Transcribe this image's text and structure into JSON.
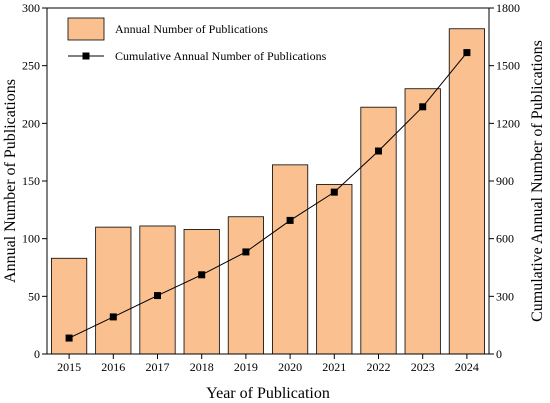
{
  "chart_data": {
    "type": "bar+line",
    "categories": [
      "2015",
      "2016",
      "2017",
      "2018",
      "2019",
      "2020",
      "2021",
      "2022",
      "2023",
      "2024"
    ],
    "series": [
      {
        "name": "Annual Number of Publications",
        "type": "bar",
        "axis": "left",
        "values": [
          83,
          110,
          111,
          108,
          119,
          164,
          147,
          214,
          230,
          282
        ]
      },
      {
        "name": "Cumulative Annual Number of Publications",
        "type": "line",
        "axis": "right",
        "values": [
          83,
          193,
          304,
          412,
          531,
          695,
          842,
          1056,
          1286,
          1568
        ]
      }
    ],
    "xlabel": "Year of Publication",
    "ylabel_left": "Annual Number of Publications",
    "ylabel_right": "Cumulative Annual Number of Publications",
    "ylim_left": [
      0,
      300
    ],
    "ylim_right": [
      0,
      1800
    ],
    "yticks_left": [
      "0",
      "50",
      "100",
      "150",
      "200",
      "250",
      "300"
    ],
    "yticks_right": [
      "0",
      "300",
      "600",
      "900",
      "1200",
      "1500",
      "1800"
    ],
    "grid": false,
    "legend_position": "top-left",
    "colors": {
      "bar_fill": "#FAC090",
      "bar_stroke": "#000000",
      "line": "#000000",
      "marker": "#000000"
    }
  }
}
